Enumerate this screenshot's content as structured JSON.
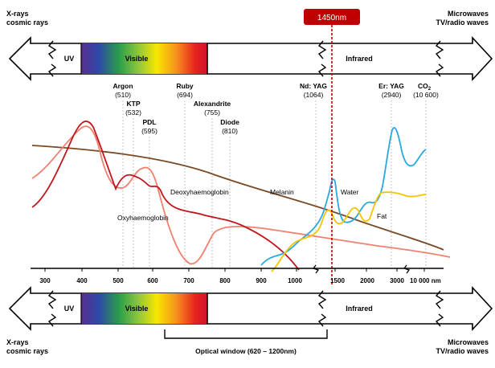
{
  "marker": {
    "label": "1450nm",
    "color": "#c00000"
  },
  "top_band": {
    "left_label_1": "X-rays",
    "left_label_2": "cosmic rays",
    "right_label_1": "Microwaves",
    "right_label_2": "TV/radio waves",
    "uv": "UV",
    "visible": "Visible",
    "infrared": "Infrared"
  },
  "bottom_band": {
    "left_label_1": "X-rays",
    "left_label_2": "cosmic rays",
    "right_label_1": "Microwaves",
    "right_label_2": "TV/radio waves",
    "uv": "UV",
    "visible": "Visible",
    "infrared": "Infrared",
    "window_label": "Optical window (620 – 1200nm)"
  },
  "lasers": [
    {
      "name": "Argon",
      "wl": "(510)"
    },
    {
      "name": "KTP",
      "wl": "(532)"
    },
    {
      "name": "PDL",
      "wl": "(595)"
    },
    {
      "name": "Ruby",
      "wl": "(694)"
    },
    {
      "name": "Alexandrite",
      "wl": "(755)"
    },
    {
      "name": "Diode",
      "wl": "(810)"
    },
    {
      "name": "Nd: YAG",
      "wl": "(1064)"
    },
    {
      "name": "Er: YAG",
      "wl": "(2940)"
    },
    {
      "name": "CO",
      "sub": "2",
      "wl": "(10 600)"
    }
  ],
  "curve_labels": {
    "deoxy": "Deoxyhaemoglobin",
    "oxy": "Oxyhaemoglobin",
    "melanin": "Melanin",
    "water": "Water",
    "fat": "Fat"
  },
  "axis_ticks": [
    "300",
    "400",
    "500",
    "600",
    "700",
    "800",
    "900",
    "1000",
    "1500",
    "2000",
    "3000",
    "10 000 nm"
  ],
  "colors": {
    "oxy": "#c0171c",
    "deoxy": "#f08070",
    "melanin": "#7a4a25",
    "water": "#2aa8e0",
    "fat": "#f5c400"
  }
}
